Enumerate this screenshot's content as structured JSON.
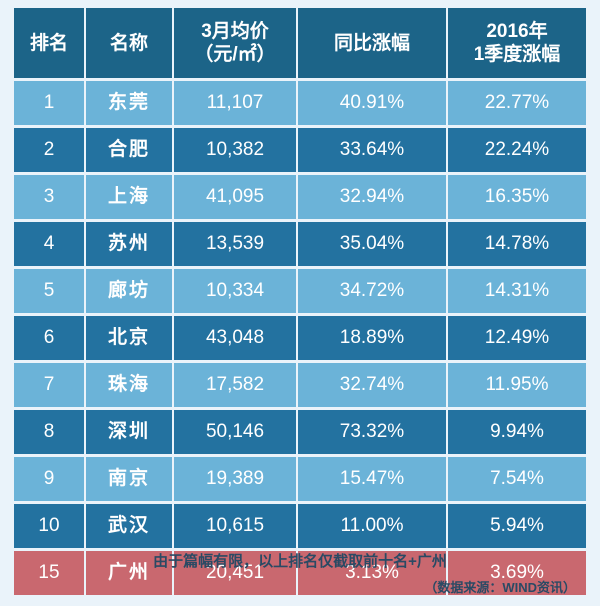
{
  "chart_data": {
    "type": "table",
    "columns": [
      {
        "lines": [
          "排名"
        ]
      },
      {
        "lines": [
          "名称"
        ]
      },
      {
        "lines": [
          "3月均价",
          "（元/㎡）"
        ]
      },
      {
        "lines": [
          "同比涨幅"
        ]
      },
      {
        "lines": [
          "2016年",
          "1季度涨幅"
        ]
      }
    ],
    "rows": [
      {
        "rank": "1",
        "city": "东莞",
        "price": "11,107",
        "yoy": "40.91%",
        "q1": "22.77%",
        "style": "light"
      },
      {
        "rank": "2",
        "city": "合肥",
        "price": "10,382",
        "yoy": "33.64%",
        "q1": "22.24%",
        "style": "dark"
      },
      {
        "rank": "3",
        "city": "上海",
        "price": "41,095",
        "yoy": "32.94%",
        "q1": "16.35%",
        "style": "light"
      },
      {
        "rank": "4",
        "city": "苏州",
        "price": "13,539",
        "yoy": "35.04%",
        "q1": "14.78%",
        "style": "dark"
      },
      {
        "rank": "5",
        "city": "廊坊",
        "price": "10,334",
        "yoy": "34.72%",
        "q1": "14.31%",
        "style": "light"
      },
      {
        "rank": "6",
        "city": "北京",
        "price": "43,048",
        "yoy": "18.89%",
        "q1": "12.49%",
        "style": "dark"
      },
      {
        "rank": "7",
        "city": "珠海",
        "price": "17,582",
        "yoy": "32.74%",
        "q1": "11.95%",
        "style": "light"
      },
      {
        "rank": "8",
        "city": "深圳",
        "price": "50,146",
        "yoy": "73.32%",
        "q1": "9.94%",
        "style": "dark"
      },
      {
        "rank": "9",
        "city": "南京",
        "price": "19,389",
        "yoy": "15.47%",
        "q1": "7.54%",
        "style": "light"
      },
      {
        "rank": "10",
        "city": "武汉",
        "price": "10,615",
        "yoy": "11.00%",
        "q1": "5.94%",
        "style": "dark"
      },
      {
        "rank": "15",
        "city": "广州",
        "price": "20,451",
        "yoy": "3.13%",
        "q1": "3.69%",
        "style": "highlight"
      }
    ]
  },
  "footnote": "由于篇幅有限，以上排名仅截取前十名+广州",
  "source": "（数据来源：WIND资讯）",
  "colors": {
    "header": "#1c6488",
    "row_dark": "#2372a0",
    "row_light": "#6bb3d8",
    "row_highlight": "#c9686f",
    "background": "#eaf3fa"
  }
}
